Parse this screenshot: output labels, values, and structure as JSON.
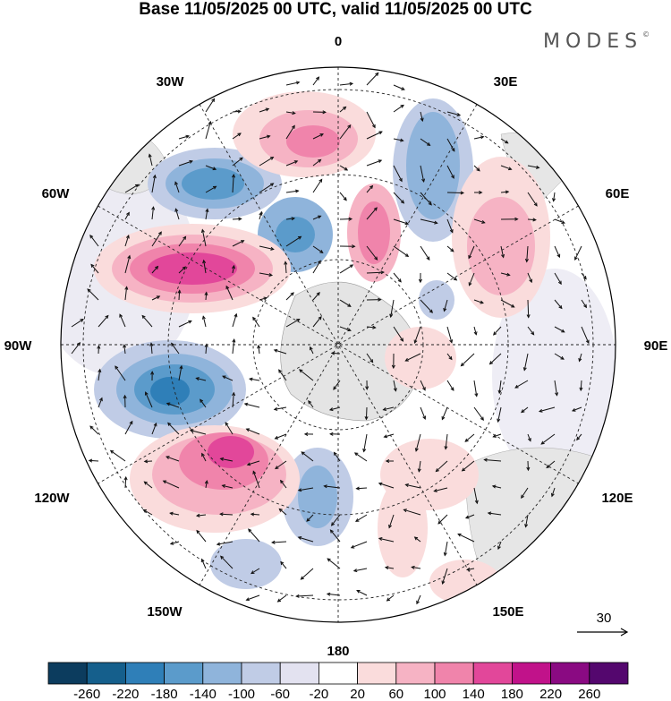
{
  "title": "Base 11/05/2025 00 UTC, valid 11/05/2025 00 UTC",
  "brand": "MODES",
  "brand_mark": "©",
  "map": {
    "projection": "south-polar-stereographic",
    "longitude_labels": [
      "0",
      "30E",
      "60E",
      "90E",
      "120E",
      "150E",
      "180",
      "150W",
      "120W",
      "90W",
      "60W",
      "30W"
    ]
  },
  "vector_reference": "30",
  "colorbar": {
    "ticks": [
      "-260",
      "-220",
      "-180",
      "-140",
      "-100",
      "-60",
      "-20",
      "20",
      "60",
      "100",
      "140",
      "180",
      "220",
      "260"
    ],
    "colors": [
      "#0c3c5e",
      "#155f8c",
      "#2f7fb8",
      "#5b9bcb",
      "#8fb4db",
      "#c0cce6",
      "#e3e2f0",
      "#ffffff",
      "#fadcdc",
      "#f6b3c4",
      "#f084ab",
      "#e2479a",
      "#c1128a",
      "#8a0a82",
      "#54076e"
    ]
  }
}
